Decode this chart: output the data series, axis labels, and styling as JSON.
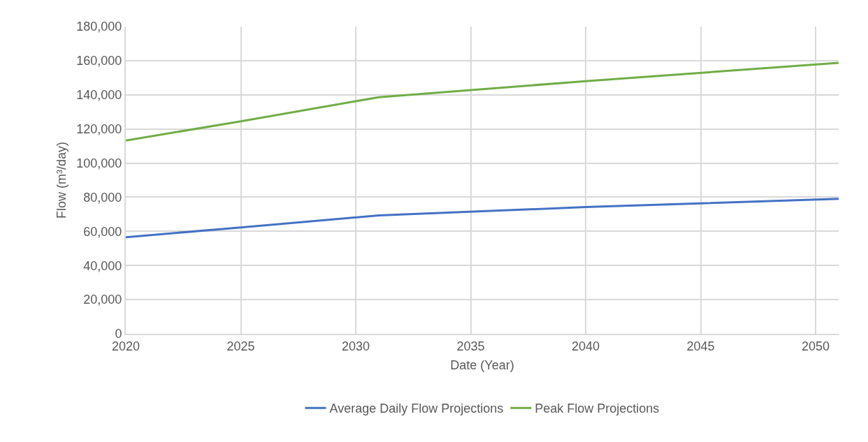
{
  "chart_data": {
    "type": "line",
    "xlabel": "Date (Year)",
    "ylabel": "Flow (m³/day)",
    "x": [
      2020,
      2025,
      2031,
      2040,
      2051
    ],
    "series": [
      {
        "name": "Average Daily Flow Projections",
        "color": "#4472c4",
        "values": [
          56600,
          62300,
          69300,
          74200,
          79100
        ]
      },
      {
        "name": "Peak Flow Projections",
        "color": "#70ad47",
        "values": [
          113200,
          124500,
          138600,
          148000,
          158700
        ]
      }
    ],
    "xlim": [
      2020,
      2051
    ],
    "xticks": [
      2020,
      2025,
      2030,
      2035,
      2040,
      2045,
      2050
    ],
    "ylim": [
      0,
      180000
    ],
    "yticks": [
      {
        "value": 0,
        "label": "0"
      },
      {
        "value": 20000,
        "label": "20,000"
      },
      {
        "value": 40000,
        "label": "40,000"
      },
      {
        "value": 60000,
        "label": "60,000"
      },
      {
        "value": 80000,
        "label": "80,000"
      },
      {
        "value": 100000,
        "label": "100,000"
      },
      {
        "value": 120000,
        "label": "120,000"
      },
      {
        "value": 140000,
        "label": "140,000"
      },
      {
        "value": 160000,
        "label": "160,000"
      },
      {
        "value": 180000,
        "label": "180,000"
      }
    ],
    "grid": true,
    "legend": "bottom",
    "marker": "none",
    "line_style": "solid"
  }
}
